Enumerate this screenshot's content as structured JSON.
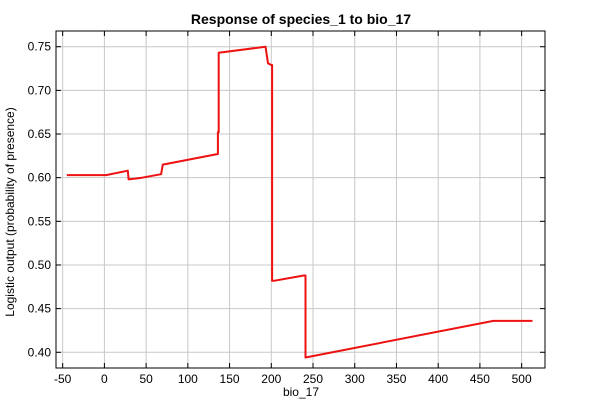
{
  "chart_data": {
    "type": "line",
    "title": "Response of species_1 to bio_17",
    "xlabel": "bio_17",
    "ylabel": "Logistic output (probability of presence)",
    "xlim": [
      -58,
      528
    ],
    "ylim": [
      0.382,
      0.768
    ],
    "xticks": [
      -50,
      0,
      50,
      100,
      150,
      200,
      250,
      300,
      350,
      400,
      450,
      500
    ],
    "xtick_labels": [
      "-50",
      "0",
      "50",
      "100",
      "150",
      "200",
      "250",
      "300",
      "350",
      "400",
      "450",
      "500"
    ],
    "yticks": [
      0.4,
      0.45,
      0.5,
      0.55,
      0.6,
      0.65,
      0.7,
      0.75
    ],
    "ytick_labels": [
      "0.40",
      "0.45",
      "0.50",
      "0.55",
      "0.60",
      "0.65",
      "0.70",
      "0.75"
    ],
    "grid": true,
    "series": [
      {
        "color": "#ee1111",
        "x": [
          -45,
          2,
          28,
          28,
          29,
          45,
          68,
          68,
          70,
          135,
          136,
          136,
          137,
          137,
          193,
          193,
          196,
          196,
          200,
          200,
          201,
          201,
          204,
          204,
          239,
          239,
          241,
          241,
          466,
          513
        ],
        "y": [
          0.603,
          0.603,
          0.608,
          0.608,
          0.598,
          0.6,
          0.604,
          0.604,
          0.615,
          0.627,
          0.627,
          0.652,
          0.652,
          0.743,
          0.75,
          0.75,
          0.731,
          0.731,
          0.729,
          0.729,
          0.729,
          0.482,
          0.482,
          0.482,
          0.488,
          0.488,
          0.488,
          0.394,
          0.436,
          0.436
        ]
      }
    ]
  }
}
